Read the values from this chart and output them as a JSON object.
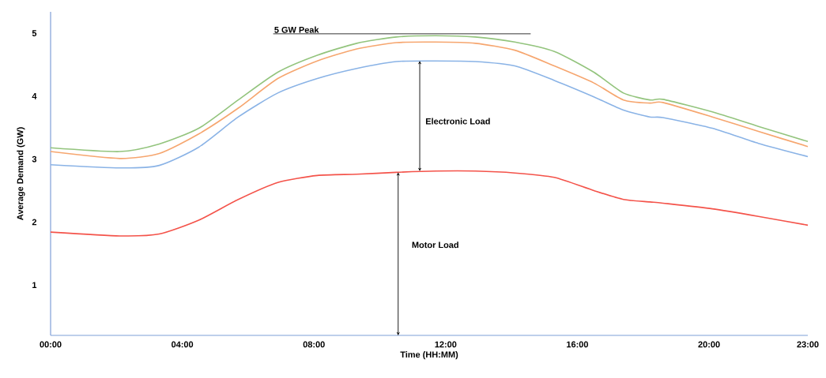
{
  "chart_data": {
    "type": "line",
    "xlabel": "Time (HH:MM)",
    "ylabel": "Average Demand (GW)",
    "x": [
      0,
      2.1,
      3.3,
      4.5,
      5.7,
      6.9,
      8.1,
      9.3,
      10.5,
      11.7,
      12.9,
      14.1,
      15.3,
      16.5,
      17.4,
      18.2,
      18.6,
      20.1,
      21.5,
      23
    ],
    "series": [
      {
        "color": "#f4534a",
        "values": [
          1.84,
          1.78,
          1.81,
          2.03,
          2.36,
          2.63,
          2.74,
          2.76,
          2.79,
          2.81,
          2.81,
          2.78,
          2.71,
          2.5,
          2.36,
          2.32,
          2.3,
          2.21,
          2.09,
          1.95
        ]
      },
      {
        "color": "#8ab3e6",
        "values": [
          2.91,
          2.86,
          2.9,
          3.19,
          3.67,
          4.05,
          4.28,
          4.44,
          4.55,
          4.56,
          4.55,
          4.48,
          4.25,
          3.99,
          3.78,
          3.67,
          3.66,
          3.49,
          3.25,
          3.04
        ]
      },
      {
        "color": "#f6a66f",
        "values": [
          3.12,
          3.01,
          3.09,
          3.4,
          3.81,
          4.28,
          4.56,
          4.75,
          4.85,
          4.86,
          4.84,
          4.73,
          4.48,
          4.21,
          3.94,
          3.89,
          3.9,
          3.67,
          3.44,
          3.2
        ]
      },
      {
        "color": "#93c47d",
        "values": [
          3.18,
          3.12,
          3.24,
          3.49,
          3.94,
          4.38,
          4.65,
          4.84,
          4.94,
          4.96,
          4.94,
          4.86,
          4.71,
          4.38,
          4.05,
          3.94,
          3.95,
          3.75,
          3.52,
          3.28
        ]
      }
    ],
    "xlim": [
      0,
      23
    ],
    "ylim": [
      0.2,
      5.34
    ],
    "xticks": [
      {
        "value": 0,
        "label": "00:00"
      },
      {
        "value": 4,
        "label": "04:00"
      },
      {
        "value": 8,
        "label": "08:00"
      },
      {
        "value": 12,
        "label": "12:00"
      },
      {
        "value": 16,
        "label": "16:00"
      },
      {
        "value": 20,
        "label": "20:00"
      },
      {
        "value": 23,
        "label": "23:00"
      }
    ],
    "yticks": [
      1,
      2,
      3,
      4,
      5
    ],
    "annotations": [
      "5 GW Peak",
      "Electronic Load",
      "Motor Load"
    ]
  }
}
